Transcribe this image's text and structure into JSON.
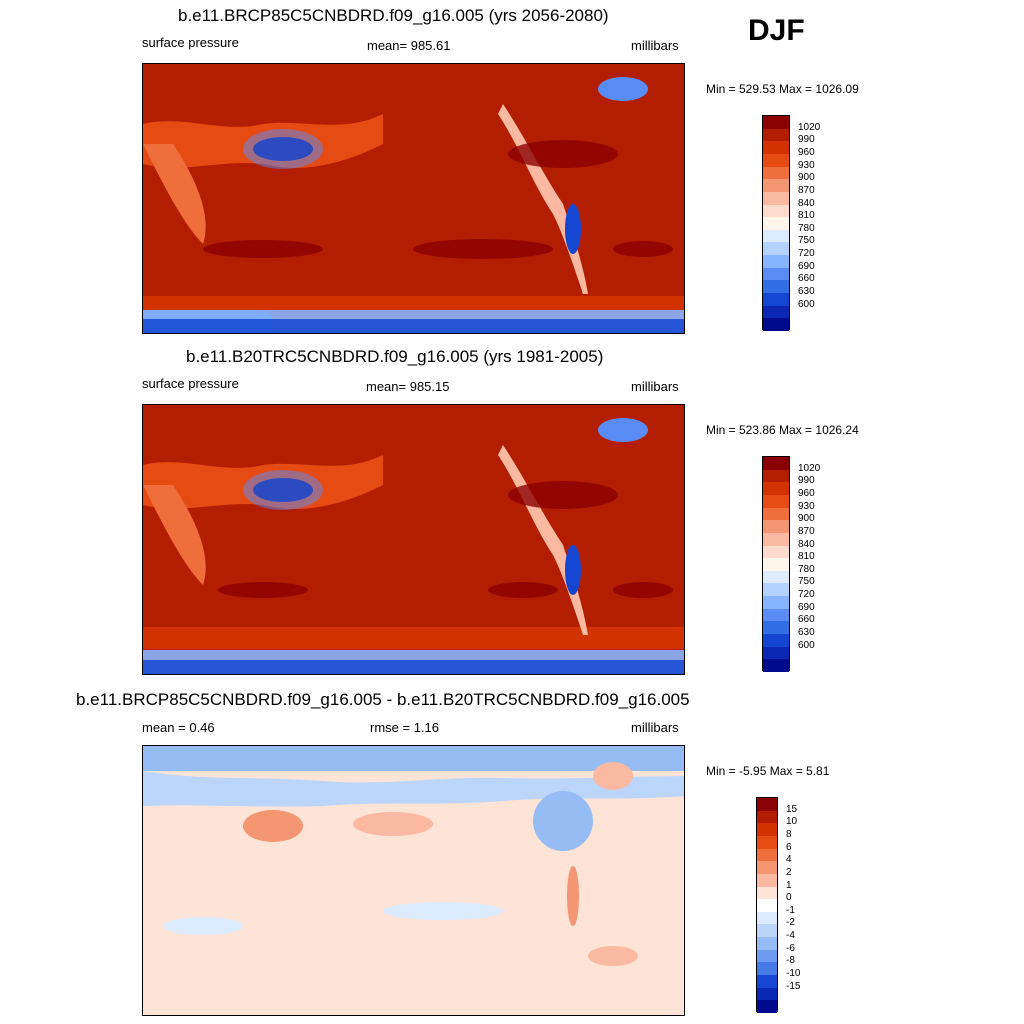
{
  "season": "DJF",
  "panels": [
    {
      "title": "b.e11.BRCP85C5CNBDRD.f09_g16.005 (yrs 2056-2080)",
      "left_label": "surface pressure",
      "center_label": "mean= 985.61",
      "right_label": "millibars",
      "minmax": "Min = 529.53 Max = 1026.09",
      "colorbar_labels": [
        "1020",
        "990",
        "960",
        "930",
        "900",
        "870",
        "840",
        "810",
        "780",
        "750",
        "720",
        "690",
        "660",
        "630",
        "600"
      ]
    },
    {
      "title": "b.e11.B20TRC5CNBDRD.f09_g16.005 (yrs 1981-2005)",
      "left_label": "surface pressure",
      "center_label": "mean= 985.15",
      "right_label": "millibars",
      "minmax": "Min = 523.86 Max = 1026.24",
      "colorbar_labels": [
        "1020",
        "990",
        "960",
        "930",
        "900",
        "870",
        "840",
        "810",
        "780",
        "750",
        "720",
        "690",
        "660",
        "630",
        "600"
      ]
    },
    {
      "title": "b.e11.BRCP85C5CNBDRD.f09_g16.005 - b.e11.B20TRC5CNBDRD.f09_g16.005",
      "left_label": "mean =   0.46",
      "center_label": "rmse =   1.16",
      "right_label": "millibars",
      "minmax": "Min =  -5.95 Max =   5.81",
      "colorbar_labels": [
        "15",
        "10",
        "8",
        "6",
        "4",
        "2",
        "1",
        "0",
        "-1",
        "-2",
        "-4",
        "-6",
        "-8",
        "-10",
        "-15"
      ]
    }
  ],
  "colors": {
    "abs_scale": [
      "#8b0000",
      "#b41e00",
      "#d23200",
      "#e64b14",
      "#f06e3c",
      "#f59673",
      "#fab9a0",
      "#fddccd",
      "#fff5eb",
      "#dcebff",
      "#b4d2ff",
      "#87b4ff",
      "#5a8cf5",
      "#326ee6",
      "#1446d2",
      "#0a28b4",
      "#000a8c"
    ],
    "diff_scale": [
      "#8b0000",
      "#b41e00",
      "#d23200",
      "#e64b14",
      "#f06e3c",
      "#f59673",
      "#fab9a0",
      "#fde4d6",
      "#ffffff",
      "#dcebff",
      "#bcd6fb",
      "#96bcf5",
      "#6e9cef",
      "#4678e6",
      "#1446d2",
      "#0a28b4",
      "#000a8c"
    ]
  }
}
